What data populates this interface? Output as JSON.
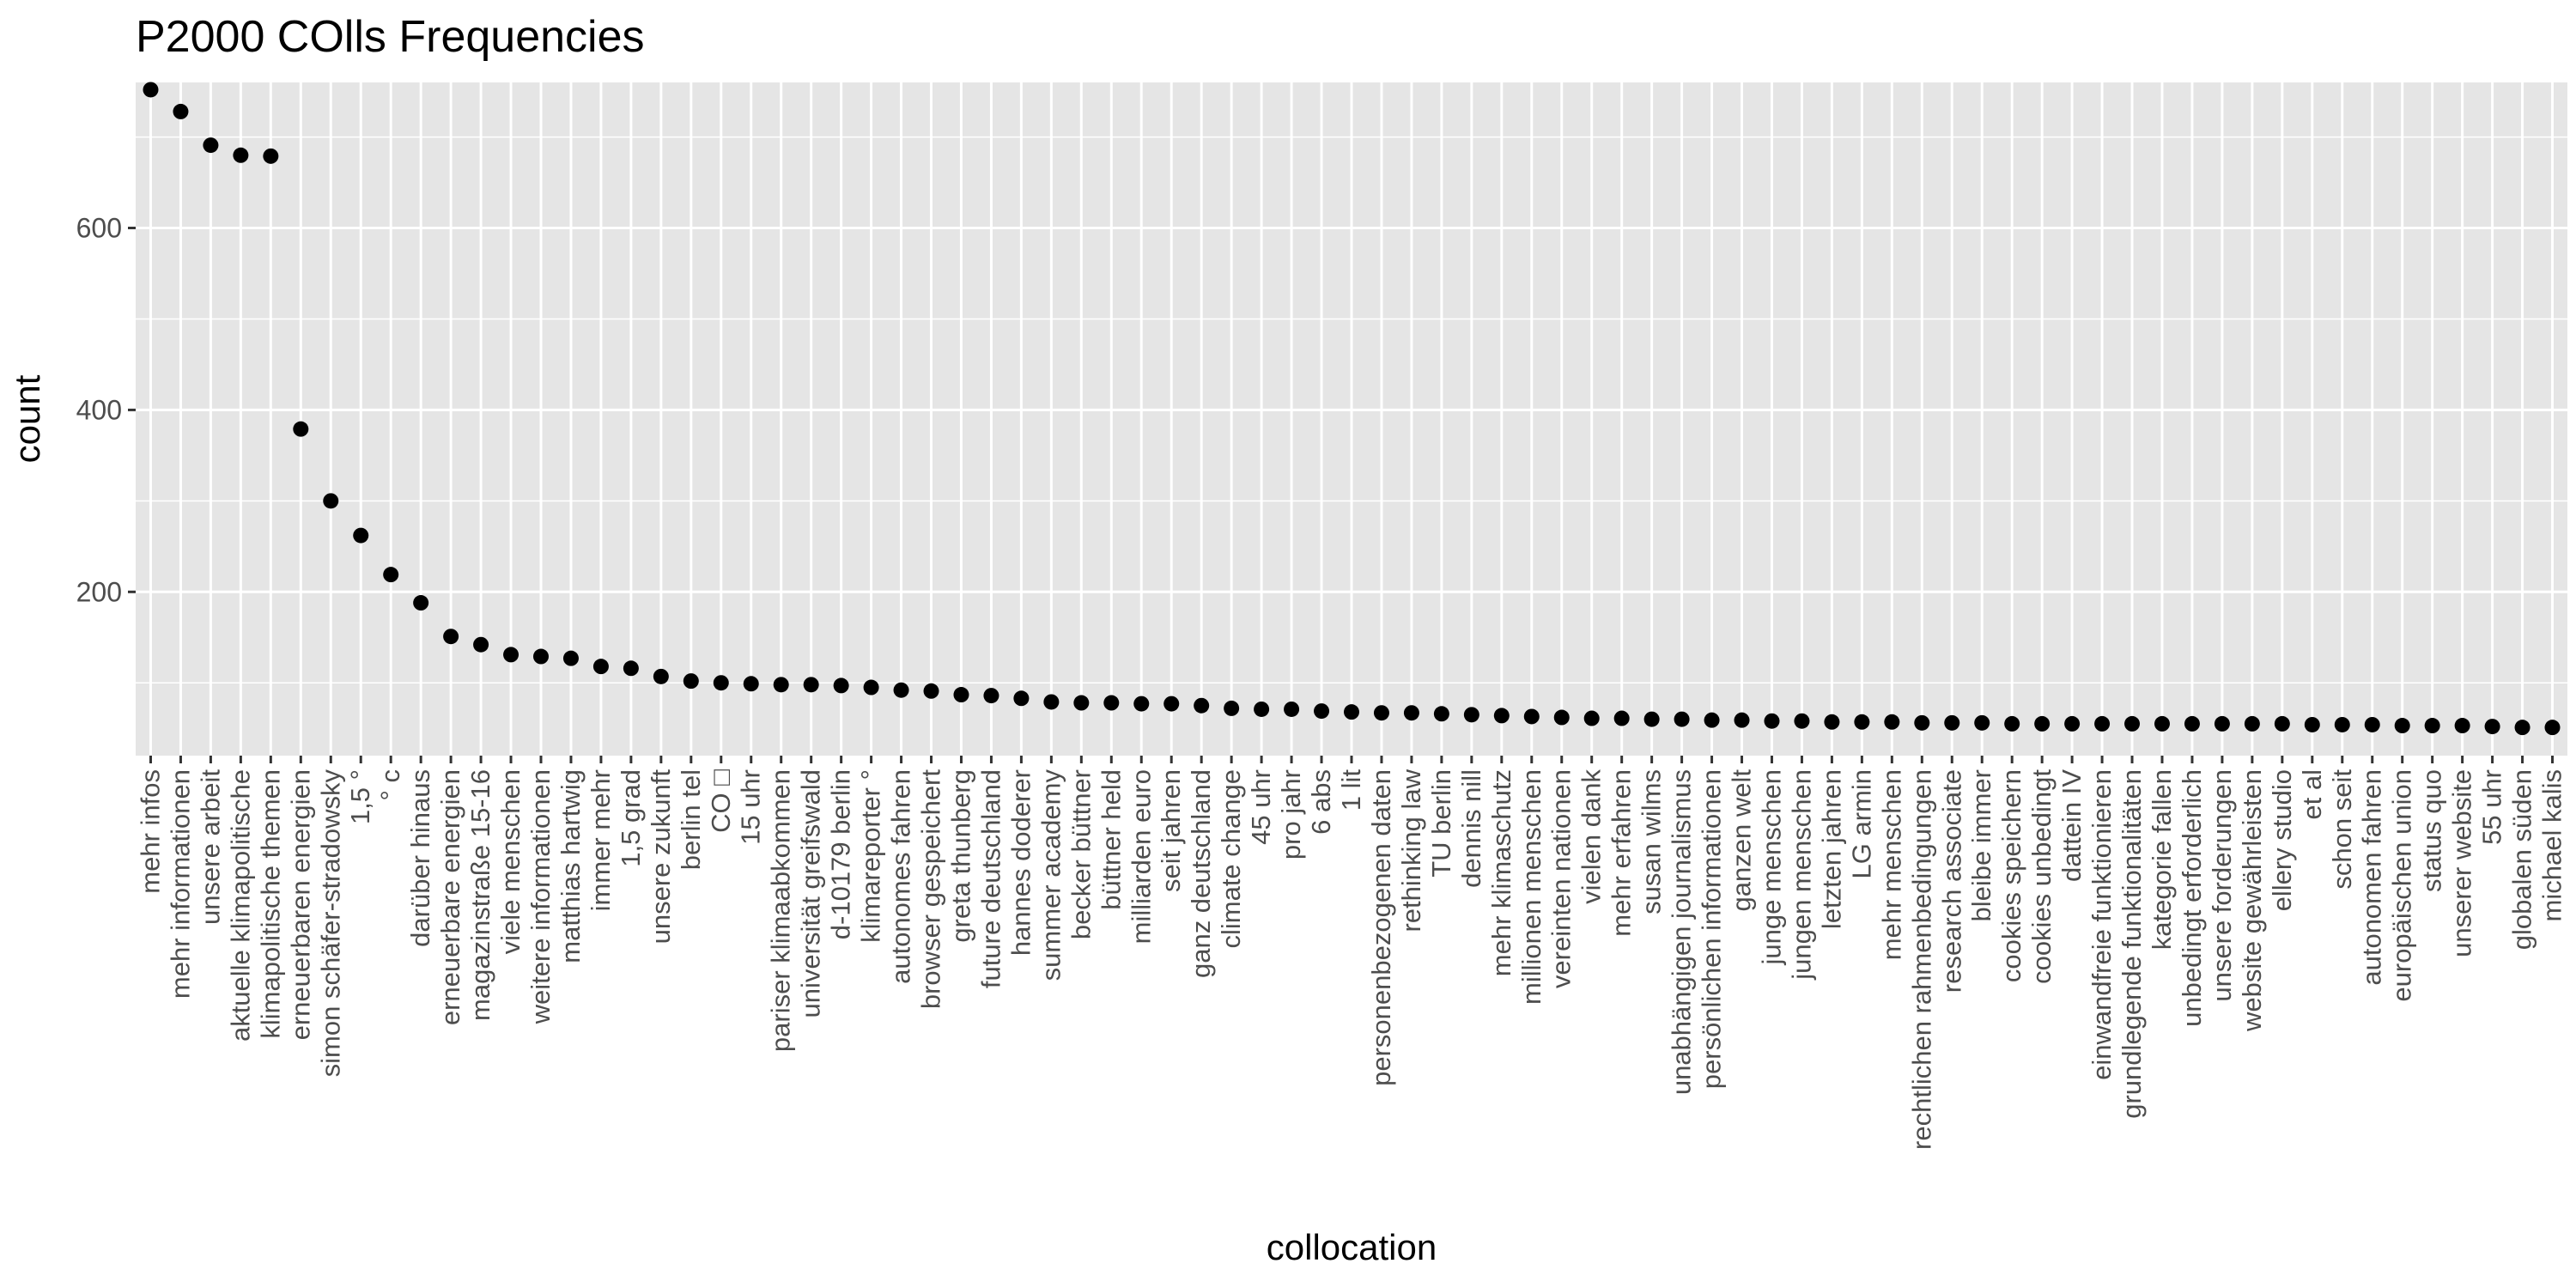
{
  "chart_data": {
    "type": "scatter",
    "title": "P2000 COlls Frequencies",
    "xlabel": "collocation",
    "ylabel": "count",
    "ylim": [
      20,
      760
    ],
    "yticks": [
      200,
      400,
      600
    ],
    "grid": true,
    "colors": {
      "panel": "#e5e5e5",
      "grid": "#ffffff",
      "point": "#000000",
      "tick_text": "#4d4d4d"
    },
    "categories": [
      "mehr infos",
      "mehr informationen",
      "unsere arbeit",
      "aktuelle klimapolitische",
      "klimapolitische themen",
      "erneuerbaren energien",
      "simon schäfer-stradowsky",
      "1,5 °",
      "° c",
      "darüber hinaus",
      "erneuerbare energien",
      "magazinstraße 15-16",
      "viele menschen",
      "weitere informationen",
      "matthias hartwig",
      "immer mehr",
      "1,5 grad",
      "unsere zukunft",
      "berlin tel",
      "CO □",
      "15 uhr",
      "pariser klimaabkommen",
      "universität greifswald",
      "d-10179 berlin",
      "klimareporter °",
      "autonomes fahren",
      "browser gespeichert",
      "greta thunberg",
      "future deutschland",
      "hannes doderer",
      "summer academy",
      "becker büttner",
      "büttner held",
      "milliarden euro",
      "seit jahren",
      "ganz deutschland",
      "climate change",
      "45 uhr",
      "pro jahr",
      "6 abs",
      "1 lit",
      "personenbezogenen daten",
      "rethinking law",
      "TU berlin",
      "dennis nill",
      "mehr klimaschutz",
      "millionen menschen",
      "vereinten nationen",
      "vielen dank",
      "mehr erfahren",
      "susan wilms",
      "unabhängigen journalismus",
      "persönlichen informationen",
      "ganzen welt",
      "junge menschen",
      "jungen menschen",
      "letzten jahren",
      "LG armin",
      "mehr menschen",
      "rechtlichen rahmenbedingungen",
      "research associate",
      "bleibe immer",
      "cookies speichern",
      "cookies unbedingt",
      "dattein IV",
      "einwandfreie funktionieren",
      "grundlegende funktionalitäten",
      "kategorie fallen",
      "unbedingt erforderlich",
      "unsere forderungen",
      "website gewährleisten",
      "ellery studio",
      "et al",
      "schon seit",
      "autonomen fahren",
      "europäischen union",
      "status quo",
      "unserer website",
      "55 uhr",
      "globalen süden",
      "michael kalis"
    ],
    "values": [
      752,
      728,
      691,
      680,
      679,
      379,
      300,
      262,
      219,
      188,
      151,
      142,
      131,
      129,
      127,
      118,
      116,
      107,
      102,
      100,
      99,
      98,
      98,
      97,
      95,
      92,
      91,
      87,
      86,
      83,
      79,
      78,
      78,
      77,
      77,
      75,
      72,
      71,
      71,
      69,
      68,
      67,
      67,
      66,
      65,
      64,
      63,
      62,
      61,
      61,
      60,
      60,
      59,
      59,
      58,
      58,
      57,
      57,
      57,
      56,
      56,
      56,
      55,
      55,
      55,
      55,
      55,
      55,
      55,
      55,
      55,
      55,
      54,
      54,
      54,
      53,
      53,
      53,
      52,
      51,
      51
    ]
  }
}
